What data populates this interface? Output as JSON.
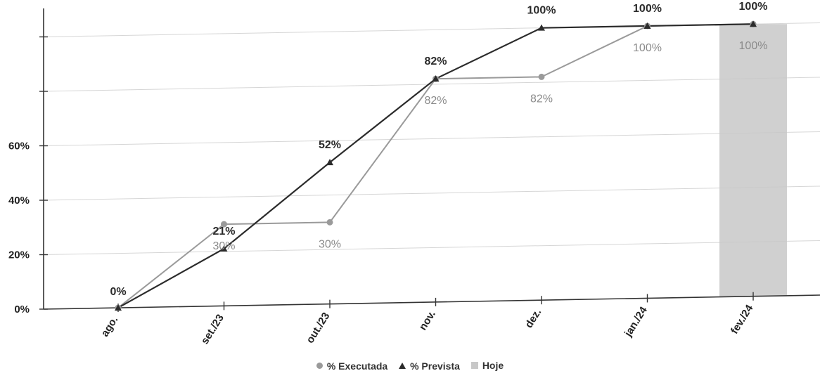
{
  "chart_data": {
    "type": "line",
    "categories": [
      "ago.",
      "set./23",
      "out./23",
      "nov.",
      "dez.",
      "jan./24",
      "fev./24"
    ],
    "series": [
      {
        "name": "% Executada",
        "values": [
          0,
          30,
          30,
          82,
          82,
          100,
          100
        ],
        "labels": [
          "",
          "30%",
          "30%",
          "82%",
          "82%",
          "100%",
          "100%"
        ],
        "color": "#9a9a9a",
        "marker": "circle"
      },
      {
        "name": "% Prevista",
        "values": [
          0,
          21,
          52,
          82,
          100,
          100,
          100
        ],
        "labels": [
          "0%",
          "21%",
          "52%",
          "82%",
          "100%",
          "100%",
          "100%"
        ],
        "color": "#2b2b2b",
        "marker": "triangle"
      }
    ],
    "highlight": {
      "name": "Hoje",
      "category": "fev./24",
      "color": "#c8c8c8"
    },
    "yticks": [
      "0%",
      "20%",
      "40%",
      "60%",
      "",
      ""
    ],
    "ylim": [
      0,
      100
    ],
    "grid": true,
    "legend_position": "bottom"
  }
}
